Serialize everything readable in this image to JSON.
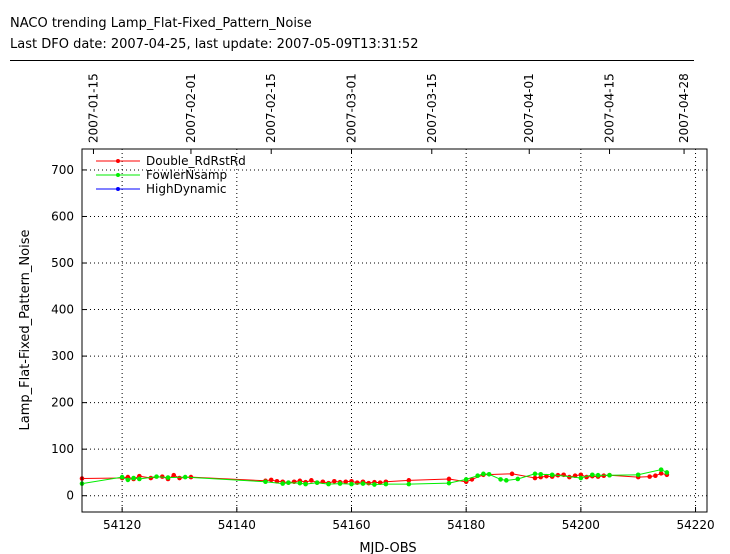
{
  "header": {
    "title": "NACO trending Lamp_Flat-Fixed_Pattern_Noise",
    "subtitle": "Last DFO date: 2007-04-25, last update: 2007-05-09T13:31:52"
  },
  "chart_data": {
    "type": "line",
    "xlabel": "MJD-OBS",
    "ylabel": "Lamp_Flat-Fixed_Pattern_Noise",
    "xlim": [
      54113,
      54222
    ],
    "ylim": [
      -35,
      745
    ],
    "x_ticks": [
      54120,
      54140,
      54160,
      54180,
      54200,
      54220
    ],
    "y_ticks": [
      0,
      100,
      200,
      300,
      400,
      500,
      600,
      700
    ],
    "top_axis": {
      "labels": [
        "2007-01-15",
        "2007-02-01",
        "2007-02-15",
        "2007-03-01",
        "2007-03-15",
        "2007-04-01",
        "2007-04-15",
        "2007-04-28"
      ],
      "mjd": [
        54115,
        54132,
        54146,
        54160,
        54174,
        54191,
        54205,
        54218
      ]
    },
    "grid": true,
    "legend_position": "top-left",
    "series": [
      {
        "name": "Double_RdRstRd",
        "color": "#ff0000",
        "x": [
          54113,
          54120,
          54121,
          54122,
          54123,
          54125,
          54127,
          54128,
          54129,
          54130,
          54132,
          54145,
          54146,
          54147,
          54148,
          54149,
          54150,
          54151,
          54152,
          54153,
          54154,
          54155,
          54156,
          54157,
          54158,
          54159,
          54160,
          54161,
          54162,
          54163,
          54164,
          54165,
          54166,
          54170,
          54177,
          54180,
          54181,
          54183,
          54188,
          54192,
          54193,
          54194,
          54195,
          54196,
          54197,
          54198,
          54199,
          54200,
          54201,
          54202,
          54203,
          54204,
          54205,
          54210,
          54212,
          54213,
          54214,
          54215
        ],
        "y": [
          37,
          38,
          40,
          36,
          42,
          38,
          41,
          36,
          44,
          38,
          40,
          32,
          34,
          31,
          30,
          28,
          30,
          32,
          29,
          33,
          28,
          30,
          27,
          31,
          29,
          30,
          31,
          28,
          30,
          27,
          29,
          28,
          30,
          33,
          36,
          30,
          35,
          45,
          47,
          38,
          40,
          42,
          41,
          44,
          45,
          40,
          43,
          45,
          40,
          42,
          41,
          43,
          44,
          40,
          41,
          43,
          48,
          45
        ]
      },
      {
        "name": "FowlerNsamp",
        "color": "#00ee00",
        "x": [
          54113,
          54120,
          54121,
          54122,
          54123,
          54126,
          54128,
          54131,
          54145,
          54148,
          54149,
          54151,
          54152,
          54154,
          54156,
          54158,
          54160,
          54162,
          54164,
          54166,
          54170,
          54177,
          54180,
          54182,
          54183,
          54184,
          54186,
          54187,
          54189,
          54192,
          54193,
          54195,
          54200,
          54202,
          54203,
          54205,
          54210,
          54214,
          54215
        ],
        "y": [
          26,
          40,
          34,
          38,
          36,
          41,
          39,
          40,
          30,
          26,
          28,
          27,
          25,
          28,
          25,
          26,
          25,
          26,
          24,
          25,
          25,
          27,
          35,
          43,
          47,
          46,
          35,
          33,
          36,
          47,
          46,
          45,
          38,
          45,
          44,
          44,
          45,
          56,
          50
        ]
      },
      {
        "name": "HighDynamic",
        "color": "#0000ff",
        "x": [],
        "y": []
      }
    ]
  }
}
